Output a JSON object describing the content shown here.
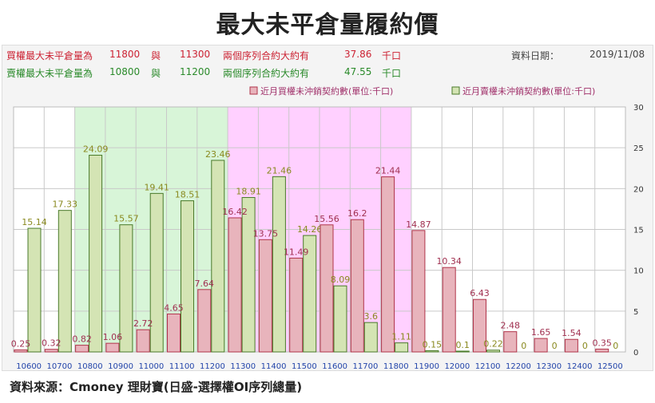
{
  "title": "最大未平倉量履約價",
  "info": {
    "call_label": "買權最大未平倉量為",
    "call_strike1": "11800",
    "call_and": "與",
    "call_strike2": "11300",
    "call_desc": "兩個序列合約大約有",
    "call_value": "37.86",
    "call_unit": "千口",
    "put_label": "賣權最大未平倉量為",
    "put_strike1": "10800",
    "put_and": "與",
    "put_strike2": "11200",
    "put_desc": "兩個序列合約大約有",
    "put_value": "47.55",
    "put_unit": "千口",
    "date_label": "資料日期：",
    "date": "2019/11/08"
  },
  "source": "資料來源：Cmoney 理財寶(日盛-選擇權OI序列總量)",
  "colors": {
    "call_bar": "#e8b4bc",
    "call_stroke": "#b0344a",
    "call_label": "#a03050",
    "put_bar": "#d4e4b4",
    "put_stroke": "#4a7a2a",
    "put_label": "#8a8a20",
    "green_zone": "#d8f5d8",
    "pink_zone": "#ffd0ff",
    "axis_text": "#2244aa"
  },
  "chart_data": {
    "type": "bar",
    "categories": [
      "10600",
      "10700",
      "10800",
      "10900",
      "11000",
      "11100",
      "11200",
      "11300",
      "11400",
      "11500",
      "11600",
      "11700",
      "11800",
      "11900",
      "12000",
      "12100",
      "12200",
      "12300",
      "12400",
      "12500"
    ],
    "series": [
      {
        "name": "近月買權未沖銷契約數(單位:千口)",
        "values": [
          0.25,
          0.32,
          0.82,
          1.06,
          2.72,
          4.65,
          7.64,
          16.42,
          13.75,
          11.49,
          15.56,
          16.2,
          21.44,
          14.87,
          10.34,
          6.43,
          2.48,
          1.65,
          1.54,
          0.35
        ]
      },
      {
        "name": "近月賣權未沖銷契約數(單位:千口)",
        "values": [
          15.14,
          17.33,
          24.09,
          15.57,
          19.41,
          18.51,
          23.46,
          18.91,
          21.46,
          14.26,
          8.09,
          3.6,
          1.11,
          0.15,
          0.1,
          0.22,
          0,
          0,
          0,
          0
        ]
      }
    ],
    "data_labels": {
      "call": [
        "0.25",
        "0.32",
        "0.82",
        "1.06",
        "2.72",
        "4.65",
        "7.64",
        "16.42",
        "13.75",
        "11.49",
        "15.56",
        "16.2",
        "21.44",
        "14.87",
        "10.34",
        "6.43",
        "2.48",
        "1.65",
        "1.54",
        "0.35"
      ],
      "put": [
        "15.14",
        "17.33",
        "24.09",
        "15.57",
        "19.41",
        "18.51",
        "23.46",
        "18.91",
        "21.46",
        "14.26",
        "8.09",
        "3.6",
        "1.11",
        "0.15",
        "0.1",
        "0.22",
        "0",
        "0",
        "0",
        "0"
      ]
    },
    "ylim": [
      0,
      30
    ],
    "yticks": [
      "0",
      "5",
      "10",
      "15",
      "20",
      "25",
      "30"
    ],
    "yaxis_position": "right",
    "grid": true,
    "legend_position": "top-right",
    "highlight_zones": [
      {
        "from": "10800",
        "to": "11200",
        "color": "green"
      },
      {
        "from": "11300",
        "to": "11800",
        "color": "pink"
      }
    ]
  }
}
